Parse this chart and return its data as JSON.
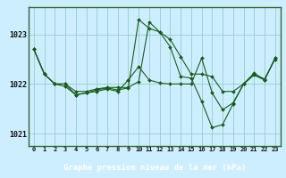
{
  "xlabel_bottom": "Graphe pression niveau de la mer (hPa)",
  "bg_color": "#cceeff",
  "plot_bg_color": "#cceeff",
  "grid_color": "#99cccc",
  "line_color": "#1a5c1a",
  "border_color": "#336633",
  "label_bg_color": "#336633",
  "label_text_color": "#ffffff",
  "hours": [
    0,
    1,
    2,
    3,
    4,
    5,
    6,
    7,
    8,
    9,
    10,
    11,
    12,
    13,
    14,
    15,
    16,
    17,
    18,
    19,
    20,
    21,
    22,
    23
  ],
  "series1": [
    1022.7,
    1022.2,
    1022.0,
    1022.0,
    1021.85,
    1021.85,
    1021.9,
    1021.93,
    1021.93,
    1021.93,
    1022.05,
    1023.25,
    1023.05,
    1022.9,
    1022.55,
    1022.2,
    1022.2,
    1022.15,
    1021.85,
    1021.85,
    1022.0,
    1022.2,
    1022.1,
    1022.5
  ],
  "series2": [
    1022.7,
    1022.2,
    1022.0,
    1021.95,
    1021.78,
    1021.82,
    1021.88,
    1021.92,
    1021.88,
    1021.92,
    1023.3,
    1023.12,
    1023.05,
    1022.75,
    1022.15,
    1022.12,
    1021.65,
    1021.12,
    1021.18,
    1021.6,
    1022.0,
    1022.18,
    1022.08,
    1022.52
  ],
  "series3": [
    1022.7,
    1022.2,
    1022.0,
    1022.0,
    1021.78,
    1021.82,
    1021.85,
    1021.9,
    1021.85,
    1022.08,
    1022.35,
    1022.08,
    1022.02,
    1022.0,
    1022.0,
    1022.0,
    1022.52,
    1021.82,
    1021.48,
    1021.62,
    1022.0,
    1022.22,
    1022.08,
    1022.52
  ],
  "ylim_min": 1020.75,
  "ylim_max": 1023.55,
  "yticks": [
    1021,
    1022,
    1023
  ],
  "xtick_labels": [
    "0",
    "1",
    "2",
    "3",
    "4",
    "5",
    "6",
    "7",
    "8",
    "9",
    "10",
    "11",
    "12",
    "13",
    "14",
    "15",
    "16",
    "17",
    "18",
    "19",
    "20",
    "21",
    "22",
    "23"
  ]
}
